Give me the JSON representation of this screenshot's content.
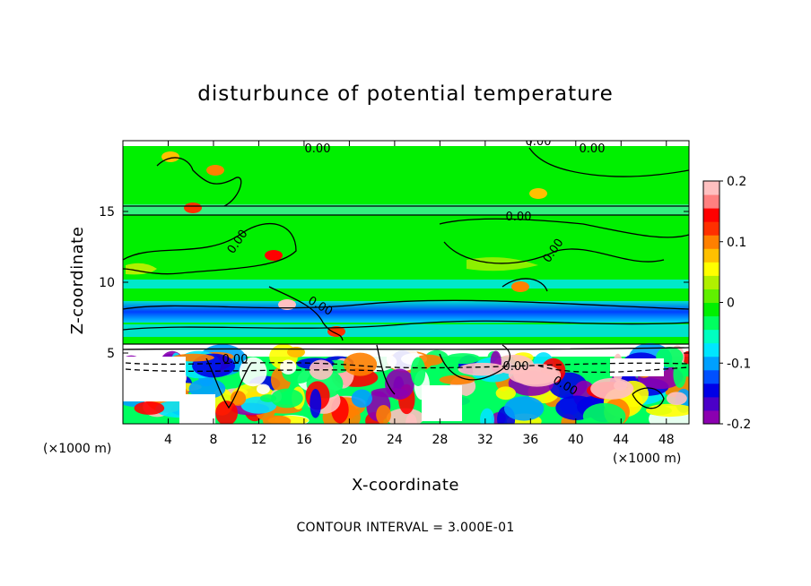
{
  "chart_data": {
    "type": "heatmap",
    "title": "disturbunce of potential temperature",
    "xlabel": "X-coordinate",
    "ylabel": "Z-coordinate",
    "x_unit": "(×1000 m)",
    "y_unit": "(×1000 m)",
    "xlim": [
      0,
      50
    ],
    "ylim": [
      0,
      20
    ],
    "x_ticks": [
      4,
      8,
      12,
      16,
      20,
      24,
      28,
      32,
      36,
      40,
      44,
      48
    ],
    "y_ticks": [
      5,
      10,
      15
    ],
    "colorbar": {
      "range": [
        -0.2,
        0.2
      ],
      "ticks": [
        "0.2",
        "0.1",
        "0",
        "-0.1",
        "-0.2"
      ],
      "colors": [
        "#8b00b0",
        "#4b00c8",
        "#0000e6",
        "#0050ff",
        "#00a0ff",
        "#00e6ff",
        "#00ffc0",
        "#00ff60",
        "#00f000",
        "#60f000",
        "#b0f000",
        "#ffff00",
        "#ffc000",
        "#ff8000",
        "#ff3000",
        "#ff0000",
        "#ff8080",
        "#ffc0c0"
      ]
    },
    "contour_labels": [
      "0.00",
      "0.00",
      "0.00",
      "0.00",
      "0.00",
      "0.00",
      "0.00",
      "0.00",
      "0.00",
      "0.00"
    ],
    "contour_interval_text": "CONTOUR INTERVAL = 3.000E-01"
  }
}
